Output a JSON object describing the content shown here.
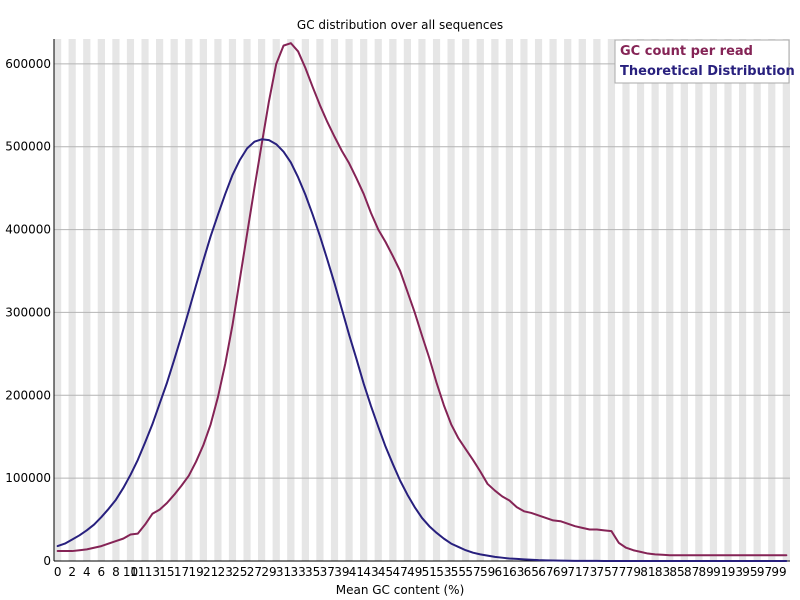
{
  "chart_data": {
    "type": "line",
    "title": "GC distribution over all sequences",
    "xlabel": "Mean GC content (%)",
    "ylabel": "",
    "xlim": [
      0,
      101
    ],
    "ylim": [
      0,
      630000
    ],
    "x_tick_labels": [
      "0",
      "2",
      "4",
      "6",
      "8",
      "10",
      "11",
      "13",
      "15",
      "17",
      "19",
      "21",
      "23",
      "25",
      "27",
      "29",
      "31",
      "33",
      "35",
      "37",
      "39",
      "41",
      "43",
      "45",
      "47",
      "49",
      "51",
      "53",
      "55",
      "57",
      "59",
      "61",
      "63",
      "65",
      "67",
      "69",
      "71",
      "73",
      "75",
      "77",
      "79",
      "81",
      "83",
      "85",
      "87",
      "89",
      "91",
      "93",
      "95",
      "97",
      "99"
    ],
    "y_ticks": [
      0,
      100000,
      200000,
      300000,
      400000,
      500000,
      600000
    ],
    "y_tick_labels": [
      "0",
      "100000",
      "200000",
      "300000",
      "400000",
      "500000",
      "600000"
    ],
    "grid": true,
    "legend_position": "top-right",
    "x": [
      0,
      1,
      2,
      3,
      4,
      5,
      6,
      7,
      8,
      9,
      10,
      11,
      12,
      13,
      14,
      15,
      16,
      17,
      18,
      19,
      20,
      21,
      22,
      23,
      24,
      25,
      26,
      27,
      28,
      29,
      30,
      31,
      32,
      33,
      34,
      35,
      36,
      37,
      38,
      39,
      40,
      41,
      42,
      43,
      44,
      45,
      46,
      47,
      48,
      49,
      50,
      51,
      52,
      53,
      54,
      55,
      56,
      57,
      58,
      59,
      60,
      61,
      62,
      63,
      64,
      65,
      66,
      67,
      68,
      69,
      70,
      71,
      72,
      73,
      74,
      75,
      76,
      77,
      78,
      79,
      80,
      81,
      82,
      83,
      84,
      85,
      86,
      87,
      88,
      89,
      90,
      91,
      92,
      93,
      94,
      95,
      96,
      97,
      98,
      99,
      100
    ],
    "series": [
      {
        "name": "GC count per read",
        "color": "#852456",
        "values": [
          12000,
          12000,
          12000,
          13000,
          14000,
          16000,
          18000,
          21000,
          24000,
          27000,
          32000,
          33000,
          44000,
          57000,
          62000,
          70000,
          80000,
          91000,
          103000,
          120000,
          140000,
          165000,
          198000,
          238000,
          285000,
          340000,
          395000,
          450000,
          503000,
          555000,
          600000,
          622000,
          625000,
          615000,
          595000,
          572000,
          550000,
          530000,
          512000,
          495000,
          480000,
          462000,
          443000,
          420000,
          400000,
          385000,
          368000,
          350000,
          325000,
          300000,
          272000,
          245000,
          215000,
          188000,
          165000,
          148000,
          135000,
          122000,
          108000,
          93000,
          85000,
          78000,
          73000,
          65000,
          60000,
          58000,
          55000,
          52000,
          49000,
          48000,
          45000,
          42000,
          40000,
          38000,
          38000,
          37000,
          36000,
          22000,
          16000,
          13000,
          11000,
          9000,
          8000,
          7500,
          7000,
          7000,
          7000,
          7000,
          7000,
          7000,
          7000,
          7000,
          7000,
          7000,
          7000,
          7000,
          7000,
          7000,
          7000,
          7000,
          7000
        ]
      },
      {
        "name": "Theoretical Distribution",
        "color": "#28207e",
        "values": [
          18000,
          21000,
          26000,
          31000,
          37000,
          44000,
          53000,
          63000,
          74000,
          88000,
          104000,
          122000,
          143000,
          165000,
          190000,
          215000,
          243000,
          272000,
          302000,
          333000,
          363000,
          392000,
          418000,
          443000,
          466000,
          484000,
          498000,
          506000,
          509000,
          508000,
          503000,
          494000,
          481000,
          463000,
          442000,
          418000,
          392000,
          364000,
          335000,
          304000,
          273000,
          244000,
          214000,
          187000,
          162000,
          138000,
          117000,
          97000,
          80000,
          65000,
          52000,
          42000,
          34000,
          27000,
          21000,
          17000,
          13000,
          10000,
          8000,
          6500,
          5000,
          4000,
          3000,
          2500,
          2000,
          1500,
          1000,
          800,
          600,
          400,
          300,
          200,
          150,
          100,
          80,
          60,
          40,
          30,
          20,
          10,
          5,
          0,
          0,
          0,
          0,
          0,
          0,
          0,
          0,
          0,
          0,
          0,
          0,
          0,
          0,
          0,
          0,
          0,
          0,
          0,
          0
        ]
      }
    ]
  }
}
